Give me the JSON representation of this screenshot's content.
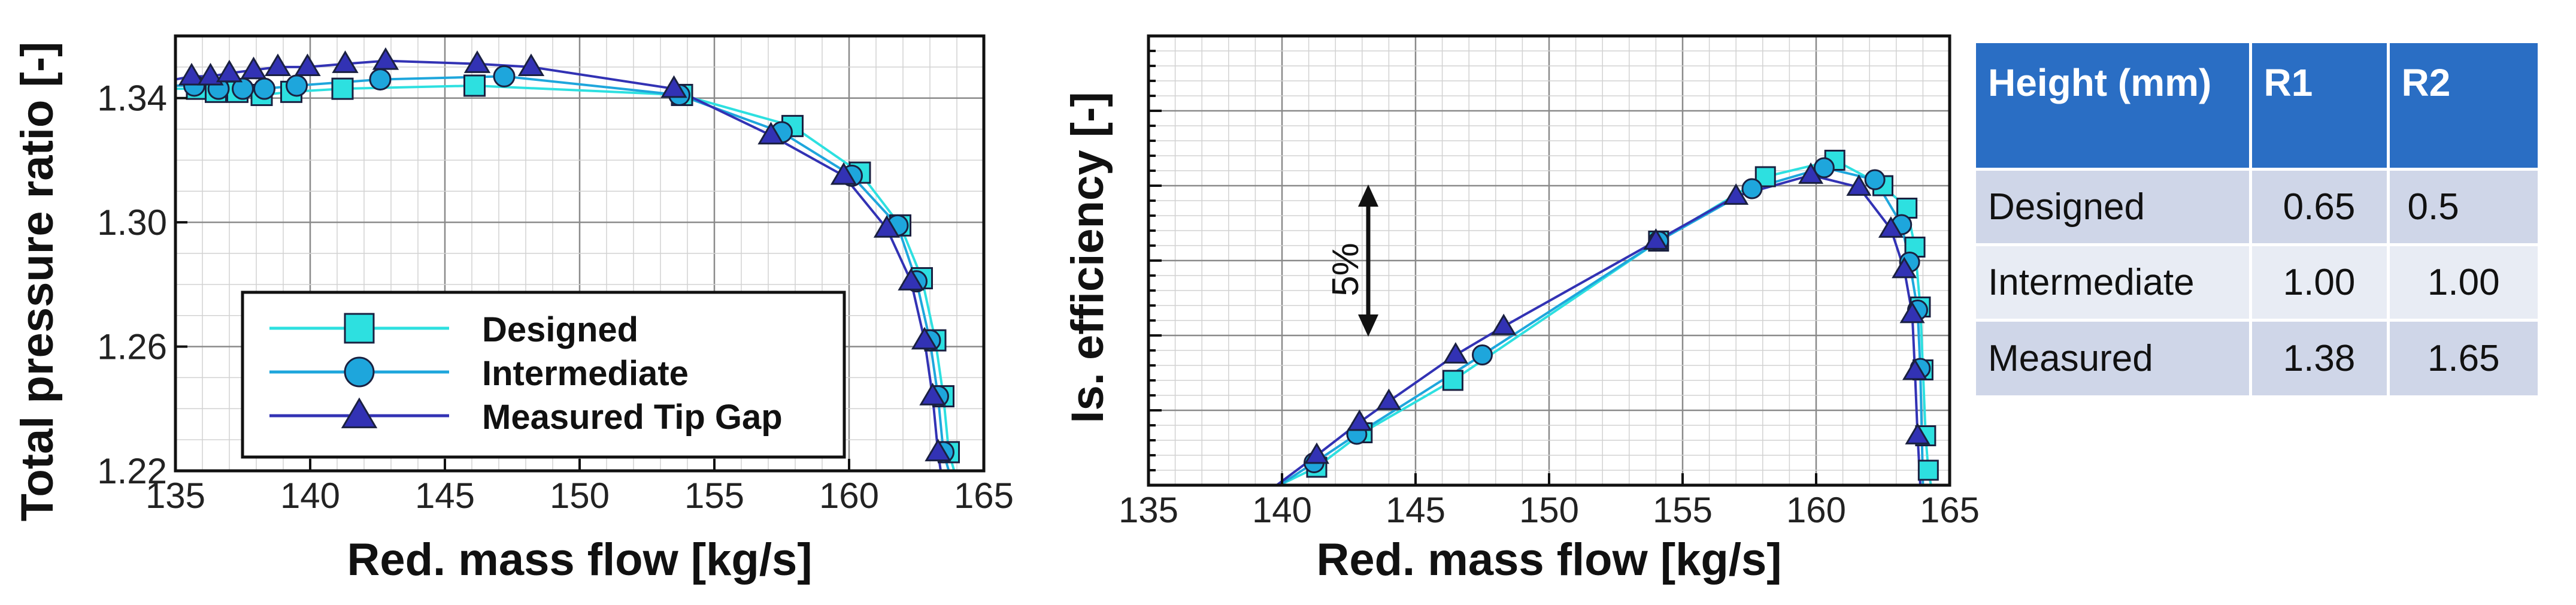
{
  "chart_data": [
    {
      "type": "line",
      "xlabel": "Red. mass flow [kg/s]",
      "ylabel": "Total pressure ratio [-]",
      "xlim": [
        135,
        165
      ],
      "ylim": [
        1.22,
        1.36
      ],
      "xticks": [
        "135",
        "140",
        "145",
        "150",
        "155",
        "160",
        "165"
      ],
      "yticks": [
        "1.22",
        "1.26",
        "1.30",
        "1.34"
      ],
      "grid": true,
      "legend_position": "lower-left",
      "series": [
        {
          "name": "Designed",
          "marker": "square",
          "color": "#2de0e0",
          "x": [
            135,
            135.8,
            136.5,
            137.3,
            138.2,
            139.3,
            141.2,
            146.1,
            153.8,
            157.9,
            160.4,
            161.9,
            162.7,
            163.2,
            163.5,
            163.7,
            163.9
          ],
          "y": [
            1.343,
            1.343,
            1.342,
            1.342,
            1.341,
            1.342,
            1.343,
            1.344,
            1.341,
            1.331,
            1.316,
            1.299,
            1.282,
            1.262,
            1.244,
            1.226,
            1.22
          ]
        },
        {
          "name": "Intermediate",
          "marker": "circle",
          "color": "#1ea6dc",
          "x": [
            135,
            135.7,
            136.6,
            137.5,
            138.3,
            139.5,
            142.6,
            147.2,
            153.7,
            157.5,
            160.1,
            161.8,
            162.5,
            163.0,
            163.3,
            163.5,
            163.7
          ],
          "y": [
            1.344,
            1.344,
            1.343,
            1.343,
            1.343,
            1.344,
            1.346,
            1.347,
            1.341,
            1.329,
            1.315,
            1.299,
            1.281,
            1.262,
            1.244,
            1.226,
            1.22
          ]
        },
        {
          "name": "Measured Tip Gap",
          "marker": "triangle",
          "color": "#3232b4",
          "x": [
            135,
            135.6,
            136.3,
            137.0,
            137.9,
            138.8,
            139.9,
            141.3,
            142.8,
            146.2,
            148.2,
            153.5,
            157.1,
            159.8,
            161.4,
            162.3,
            162.8,
            163.1,
            163.3,
            163.4
          ],
          "y": [
            1.346,
            1.347,
            1.347,
            1.348,
            1.349,
            1.35,
            1.35,
            1.351,
            1.352,
            1.351,
            1.35,
            1.343,
            1.328,
            1.315,
            1.298,
            1.281,
            1.262,
            1.244,
            1.226,
            1.22
          ]
        }
      ]
    },
    {
      "type": "line",
      "xlabel": "Red. mass flow [kg/s]",
      "ylabel": "Is. efficiency [-]",
      "xlim": [
        135,
        165
      ],
      "ylim": [
        0,
        30
      ],
      "xticks": [
        "135",
        "140",
        "145",
        "150",
        "155",
        "160",
        "165"
      ],
      "y_unit_note": "y in % points above the lower axis edge; gridline every 5%",
      "grid": true,
      "annotation": "5%",
      "series": [
        {
          "name": "Designed",
          "marker": "square",
          "color": "#2de0e0",
          "x": [
            139.9,
            141.3,
            143.0,
            146.4,
            154.1,
            158.1,
            160.7,
            162.5,
            163.4,
            163.7,
            163.9,
            164.0,
            164.1,
            164.2,
            164.3
          ],
          "y": [
            0.0,
            1.2,
            3.5,
            7.0,
            16.3,
            20.6,
            21.7,
            20.0,
            18.5,
            15.9,
            11.9,
            7.7,
            3.3,
            1.0,
            0.0
          ]
        },
        {
          "name": "Intermediate",
          "marker": "circle",
          "color": "#1ea6dc",
          "x": [
            139.9,
            141.2,
            142.8,
            147.5,
            154.1,
            157.6,
            160.3,
            162.2,
            163.2,
            163.5,
            163.8,
            163.9,
            164.0
          ],
          "y": [
            0.0,
            1.5,
            3.4,
            8.7,
            16.3,
            19.8,
            21.2,
            20.4,
            17.4,
            14.9,
            11.7,
            7.8,
            0.0
          ]
        },
        {
          "name": "Measured Tip Gap",
          "marker": "triangle",
          "color": "#3232b4",
          "x": [
            139.8,
            141.3,
            142.9,
            144.0,
            146.5,
            148.3,
            154.0,
            157.0,
            159.8,
            161.6,
            162.8,
            163.3,
            163.6,
            163.7,
            163.8,
            163.9
          ],
          "y": [
            0.0,
            2.0,
            4.2,
            5.6,
            8.7,
            10.6,
            16.3,
            19.3,
            20.7,
            19.9,
            17.1,
            14.4,
            11.4,
            7.6,
            3.3,
            0.0
          ]
        }
      ]
    },
    {
      "type": "table",
      "columns": [
        "Height (mm)",
        "R1",
        "R2"
      ],
      "rows": [
        [
          "Designed",
          "0.65",
          "0.5"
        ],
        [
          "Intermediate",
          "1.00",
          "1.00"
        ],
        [
          "Measured",
          "1.38",
          "1.65"
        ]
      ]
    }
  ],
  "colors": {
    "designed": "#2de0e0",
    "intermediate": "#1ea6dc",
    "measured": "#3232b4",
    "table_header": "#2a6ec4"
  }
}
